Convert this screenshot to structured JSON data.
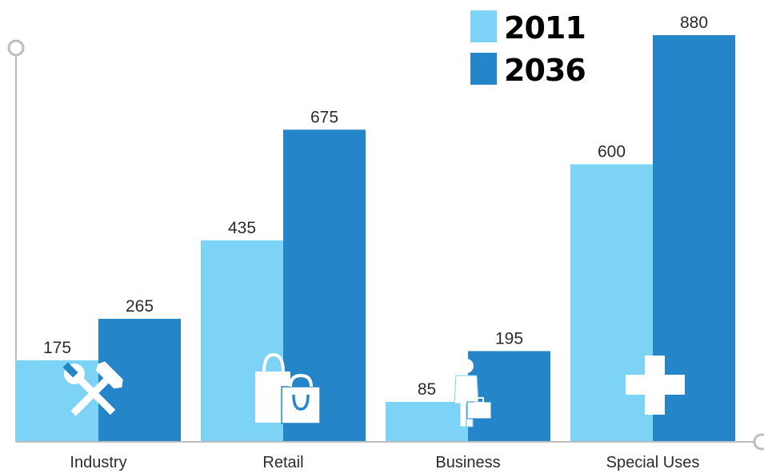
{
  "chart_data": {
    "type": "bar",
    "categories": [
      "Industry",
      "Retail",
      "Business",
      "Special Uses"
    ],
    "icons": [
      "hammer-wrench-icon",
      "shopping-bags-icon",
      "businessman-icon",
      "medical-cross-icon"
    ],
    "series": [
      {
        "name": "2011",
        "values": [
          175,
          435,
          85,
          600
        ],
        "color": "#7dd3f5"
      },
      {
        "name": "2036",
        "values": [
          265,
          675,
          195,
          880
        ],
        "color": "#2585c9"
      }
    ],
    "ylim": [
      0,
      1000
    ],
    "grid": false,
    "legend_position": "top-right",
    "axis_color": "#bdbdbd",
    "icon_color": "#ffffff"
  }
}
